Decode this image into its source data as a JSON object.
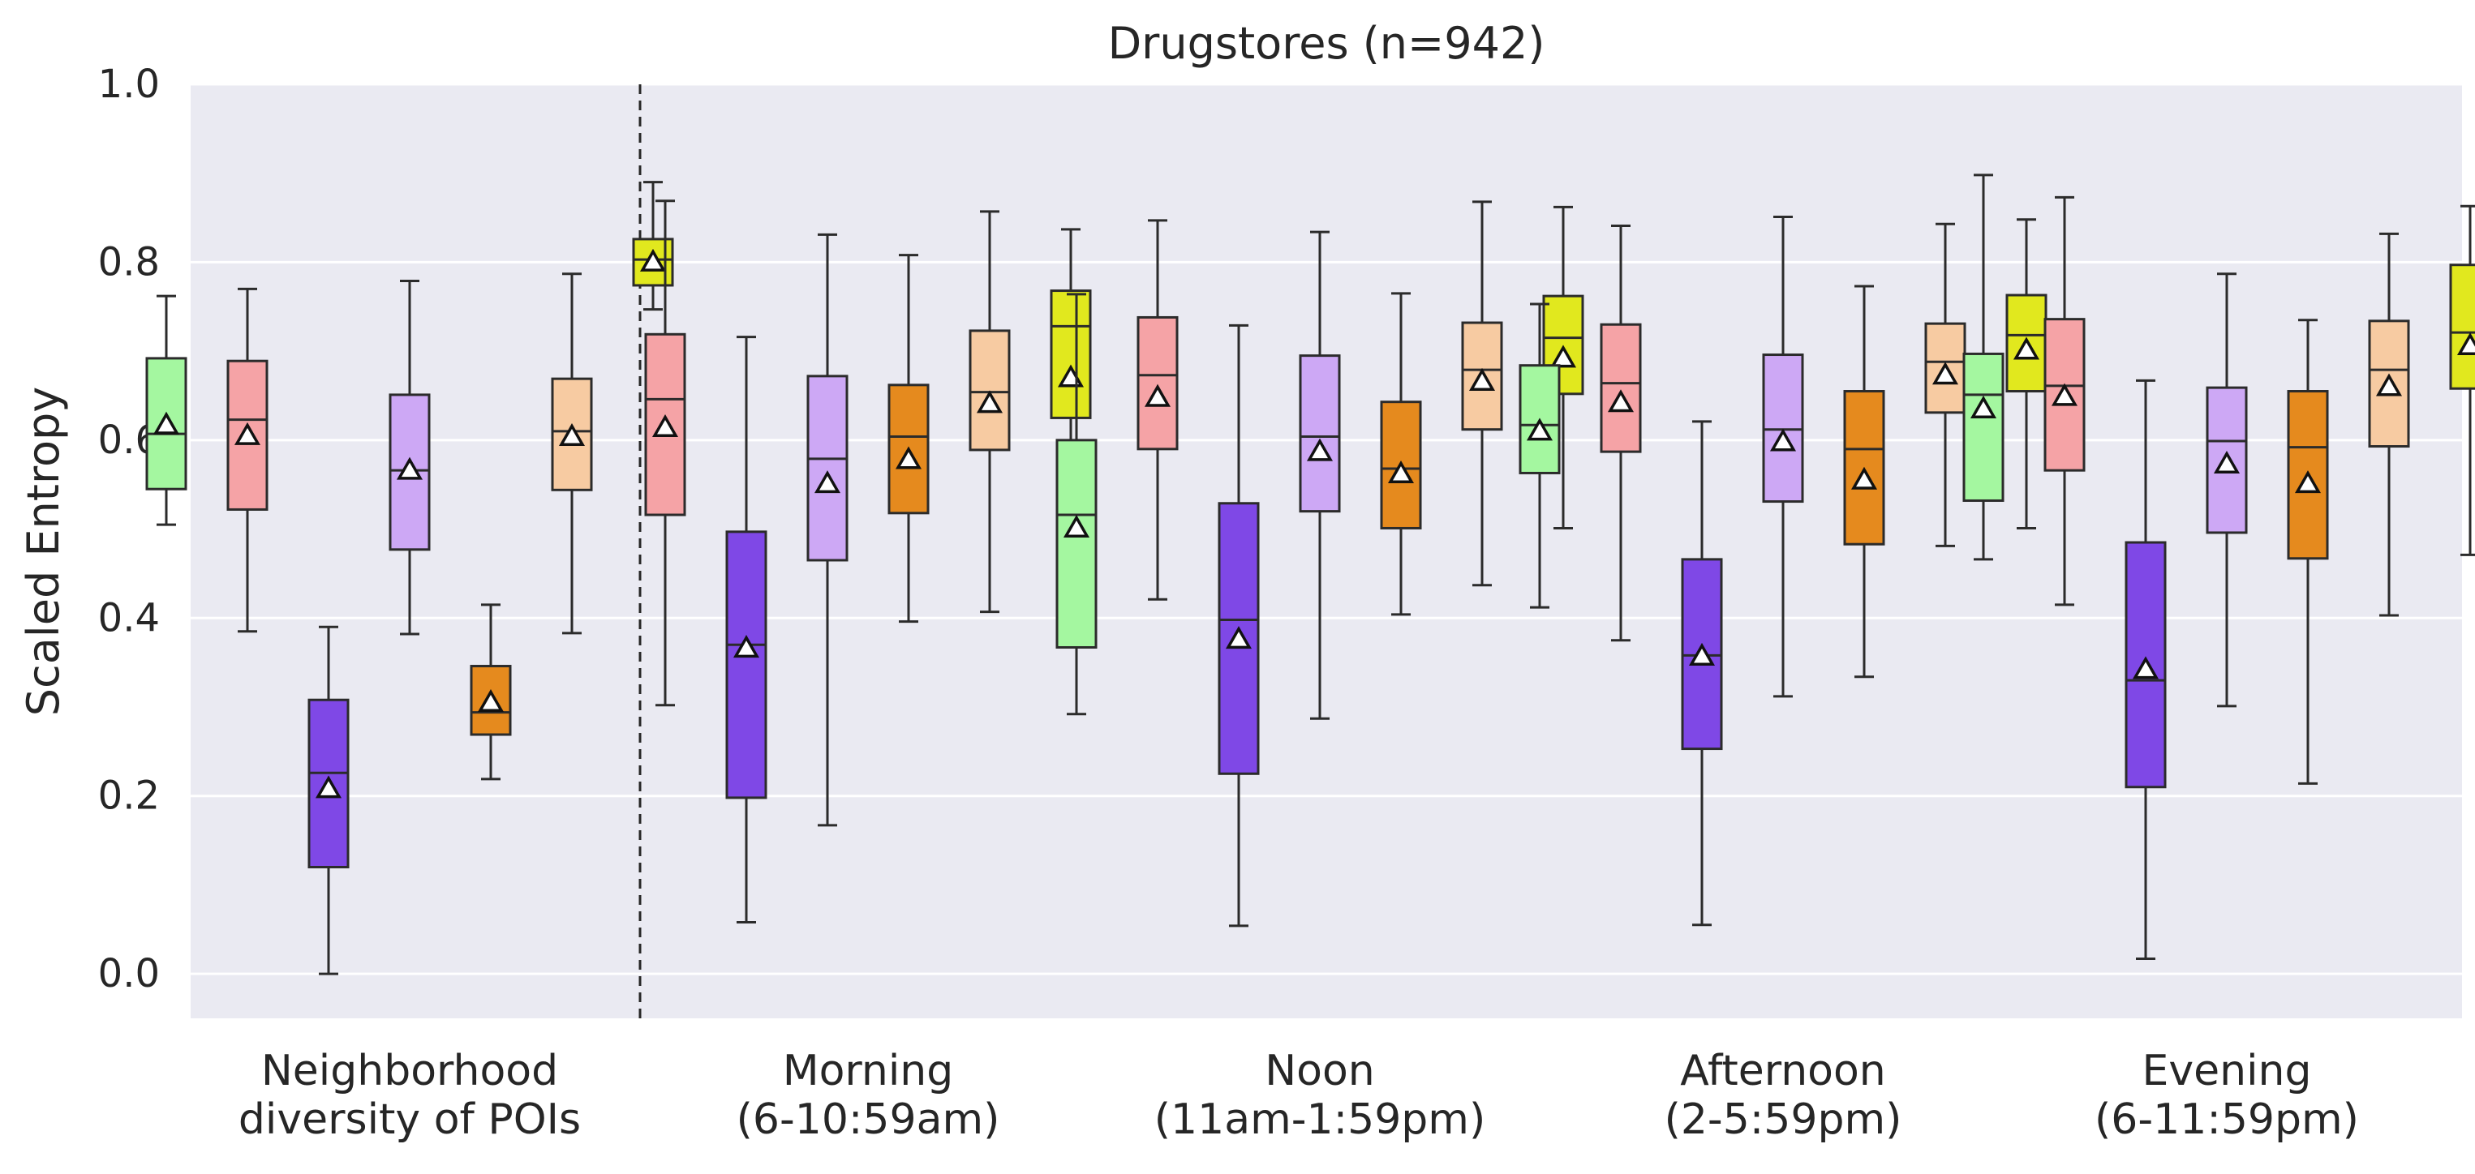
{
  "chart_data": {
    "type": "boxplot",
    "title": "Drugstores (n=942)",
    "ylabel": "Scaled Entropy",
    "xlabel": "",
    "ylim": [
      -0.05,
      1.0
    ],
    "yticks": [
      "0.0",
      "0.2",
      "0.4",
      "0.6",
      "0.8",
      "1.0"
    ],
    "grid": true,
    "mean_marker": "triangle",
    "colors": [
      "#a4f7a0",
      "#f5a3a6",
      "#7f48e6",
      "#cda8f5",
      "#e58a1e",
      "#f7cba2",
      "#e1e81e"
    ],
    "groups": [
      {
        "label": [
          "Neighborhood",
          "diversity of POIs"
        ],
        "boxes": [
          {
            "color_index": 0,
            "whislo": 0.505,
            "q1": 0.545,
            "med": 0.607,
            "q3": 0.692,
            "whishi": 0.762,
            "mean": 0.617
          },
          {
            "color_index": 1,
            "whislo": 0.385,
            "q1": 0.522,
            "med": 0.623,
            "q3": 0.689,
            "whishi": 0.77,
            "mean": 0.605
          },
          {
            "color_index": 2,
            "whislo": 0.0,
            "q1": 0.12,
            "med": 0.226,
            "q3": 0.308,
            "whishi": 0.39,
            "mean": 0.208
          },
          {
            "color_index": 3,
            "whislo": 0.382,
            "q1": 0.477,
            "med": 0.566,
            "q3": 0.651,
            "whishi": 0.779,
            "mean": 0.566
          },
          {
            "color_index": 4,
            "whislo": 0.219,
            "q1": 0.269,
            "med": 0.294,
            "q3": 0.346,
            "whishi": 0.415,
            "mean": 0.305
          },
          {
            "color_index": 5,
            "whislo": 0.383,
            "q1": 0.544,
            "med": 0.61,
            "q3": 0.669,
            "whishi": 0.787,
            "mean": 0.604
          },
          {
            "color_index": 6,
            "whislo": 0.747,
            "q1": 0.774,
            "med": 0.803,
            "q3": 0.826,
            "whishi": 0.89,
            "mean": 0.8
          }
        ]
      },
      {
        "label": [
          "Morning",
          "(6-10:59am)"
        ],
        "boxes": [
          {
            "color_index": 1,
            "whislo": 0.302,
            "q1": 0.516,
            "med": 0.646,
            "q3": 0.719,
            "whishi": 0.869,
            "mean": 0.614
          },
          {
            "color_index": 2,
            "whislo": 0.058,
            "q1": 0.198,
            "med": 0.37,
            "q3": 0.497,
            "whishi": 0.716,
            "mean": 0.366
          },
          {
            "color_index": 3,
            "whislo": 0.167,
            "q1": 0.465,
            "med": 0.579,
            "q3": 0.672,
            "whishi": 0.831,
            "mean": 0.551
          },
          {
            "color_index": 4,
            "whislo": 0.396,
            "q1": 0.518,
            "med": 0.604,
            "q3": 0.662,
            "whishi": 0.808,
            "mean": 0.578
          },
          {
            "color_index": 5,
            "whislo": 0.407,
            "q1": 0.589,
            "med": 0.654,
            "q3": 0.723,
            "whishi": 0.857,
            "mean": 0.641
          },
          {
            "color_index": 6,
            "whislo": 0.419,
            "q1": 0.625,
            "med": 0.728,
            "q3": 0.768,
            "whishi": 0.837,
            "mean": 0.67
          }
        ]
      },
      {
        "label": [
          "Noon",
          "(11am-1:59pm)"
        ],
        "boxes": [
          {
            "color_index": 0,
            "whislo": 0.292,
            "q1": 0.367,
            "med": 0.516,
            "q3": 0.6,
            "whishi": 0.764,
            "mean": 0.501
          },
          {
            "color_index": 1,
            "whislo": 0.421,
            "q1": 0.59,
            "med": 0.673,
            "q3": 0.738,
            "whishi": 0.847,
            "mean": 0.648
          },
          {
            "color_index": 2,
            "whislo": 0.054,
            "q1": 0.225,
            "med": 0.398,
            "q3": 0.529,
            "whishi": 0.729,
            "mean": 0.376
          },
          {
            "color_index": 3,
            "whislo": 0.287,
            "q1": 0.52,
            "med": 0.604,
            "q3": 0.695,
            "whishi": 0.834,
            "mean": 0.587
          },
          {
            "color_index": 4,
            "whislo": 0.404,
            "q1": 0.501,
            "med": 0.568,
            "q3": 0.643,
            "whishi": 0.765,
            "mean": 0.562
          },
          {
            "color_index": 5,
            "whislo": 0.437,
            "q1": 0.612,
            "med": 0.679,
            "q3": 0.732,
            "whishi": 0.868,
            "mean": 0.666
          },
          {
            "color_index": 6,
            "whislo": 0.501,
            "q1": 0.652,
            "med": 0.715,
            "q3": 0.762,
            "whishi": 0.862,
            "mean": 0.692
          }
        ]
      },
      {
        "label": [
          "Afternoon",
          "(2-5:59pm)"
        ],
        "boxes": [
          {
            "color_index": 0,
            "whislo": 0.412,
            "q1": 0.563,
            "med": 0.617,
            "q3": 0.684,
            "whishi": 0.753,
            "mean": 0.61
          },
          {
            "color_index": 1,
            "whislo": 0.375,
            "q1": 0.587,
            "med": 0.664,
            "q3": 0.73,
            "whishi": 0.841,
            "mean": 0.642
          },
          {
            "color_index": 2,
            "whislo": 0.055,
            "q1": 0.253,
            "med": 0.358,
            "q3": 0.466,
            "whishi": 0.621,
            "mean": 0.357
          },
          {
            "color_index": 3,
            "whislo": 0.312,
            "q1": 0.531,
            "med": 0.612,
            "q3": 0.696,
            "whishi": 0.851,
            "mean": 0.598
          },
          {
            "color_index": 4,
            "whislo": 0.334,
            "q1": 0.483,
            "med": 0.59,
            "q3": 0.655,
            "whishi": 0.773,
            "mean": 0.555
          },
          {
            "color_index": 5,
            "whislo": 0.481,
            "q1": 0.631,
            "med": 0.688,
            "q3": 0.731,
            "whishi": 0.843,
            "mean": 0.673
          },
          {
            "color_index": 6,
            "whislo": 0.501,
            "q1": 0.655,
            "med": 0.718,
            "q3": 0.763,
            "whishi": 0.848,
            "mean": 0.701
          }
        ]
      },
      {
        "label": [
          "Evening",
          "(6-11:59pm)"
        ],
        "boxes": [
          {
            "color_index": 0,
            "whislo": 0.466,
            "q1": 0.532,
            "med": 0.651,
            "q3": 0.697,
            "whishi": 0.898,
            "mean": 0.635
          },
          {
            "color_index": 1,
            "whislo": 0.415,
            "q1": 0.566,
            "med": 0.661,
            "q3": 0.736,
            "whishi": 0.873,
            "mean": 0.649
          },
          {
            "color_index": 2,
            "whislo": 0.017,
            "q1": 0.21,
            "med": 0.33,
            "q3": 0.485,
            "whishi": 0.667,
            "mean": 0.342
          },
          {
            "color_index": 3,
            "whislo": 0.301,
            "q1": 0.496,
            "med": 0.599,
            "q3": 0.659,
            "whishi": 0.787,
            "mean": 0.573
          },
          {
            "color_index": 4,
            "whislo": 0.214,
            "q1": 0.467,
            "med": 0.592,
            "q3": 0.655,
            "whishi": 0.735,
            "mean": 0.551
          },
          {
            "color_index": 5,
            "whislo": 0.403,
            "q1": 0.593,
            "med": 0.679,
            "q3": 0.734,
            "whishi": 0.832,
            "mean": 0.66
          },
          {
            "color_index": 6,
            "whislo": 0.471,
            "q1": 0.658,
            "med": 0.721,
            "q3": 0.797,
            "whishi": 0.863,
            "mean": 0.706
          }
        ]
      }
    ]
  }
}
